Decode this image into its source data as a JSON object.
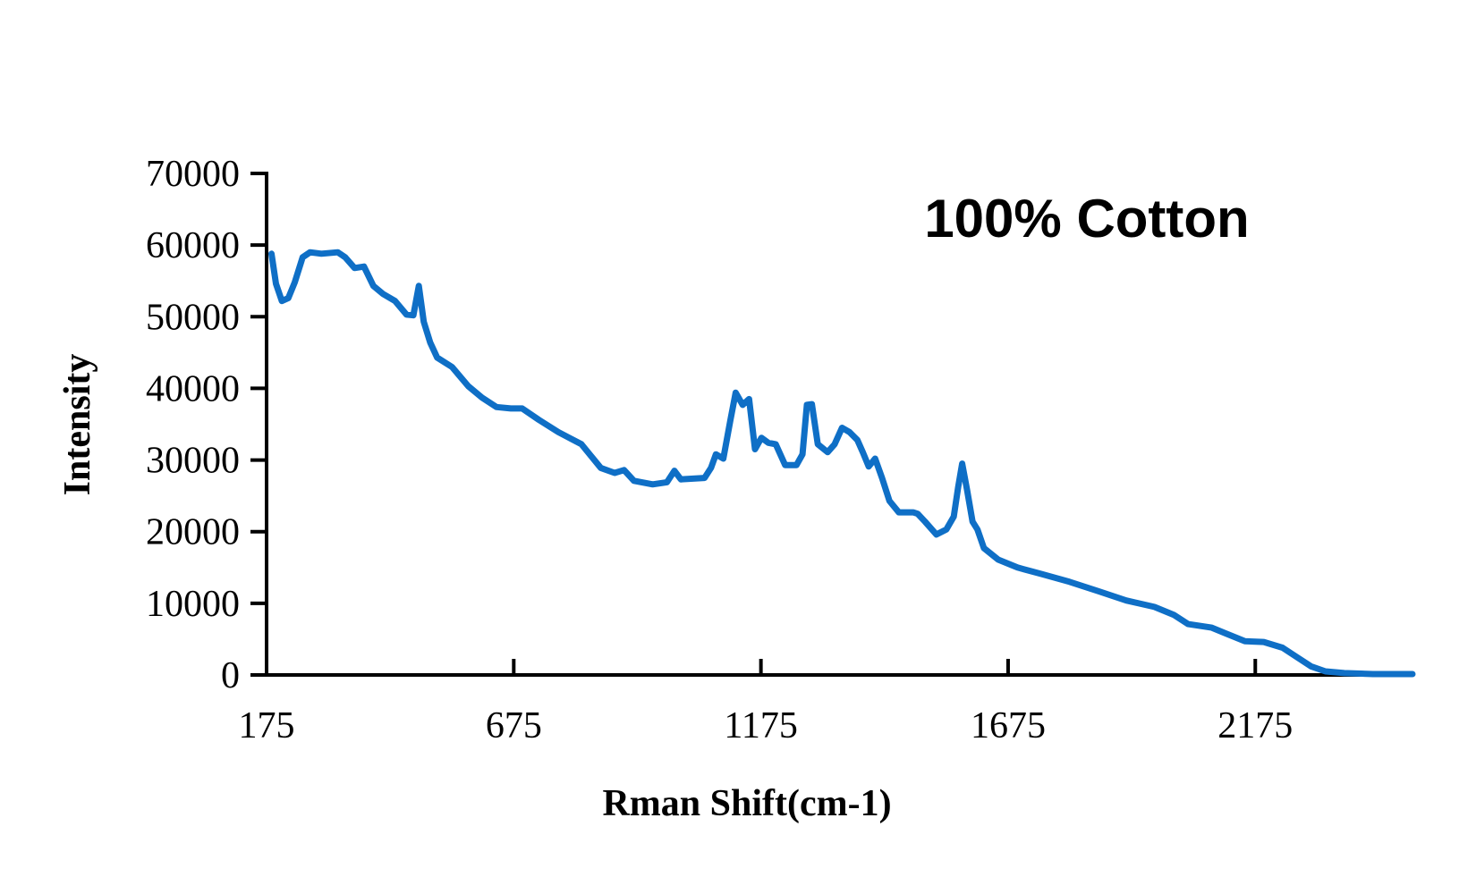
{
  "chart_data": {
    "type": "line",
    "title": "100% Cotton",
    "x_label": "Rman  Shift(cm-1)",
    "y_label": "Intensity",
    "xlim": [
      175,
      2493
    ],
    "ylim": [
      0,
      70000
    ],
    "xticks": [
      175,
      675,
      1175,
      1675,
      2175
    ],
    "yticks": [
      0,
      10000,
      20000,
      30000,
      40000,
      50000,
      60000,
      70000
    ],
    "series": [
      {
        "name": "100% Cotton",
        "color": "#0f6fc6",
        "x": [
          185,
          194,
          206,
          219,
          232,
          248,
          263,
          286,
          319,
          334,
          353,
          372,
          391,
          410,
          435,
          458,
          472,
          483,
          493,
          506,
          520,
          550,
          583,
          611,
          640,
          669,
          692,
          726,
          765,
          812,
          831,
          851,
          879,
          898,
          918,
          956,
          985,
          1000,
          1013,
          1061,
          1074,
          1084,
          1099,
          1113,
          1124,
          1138,
          1151,
          1163,
          1176,
          1190,
          1205,
          1224,
          1247,
          1259,
          1268,
          1278,
          1290,
          1310,
          1324,
          1339,
          1354,
          1370,
          1381,
          1393,
          1406,
          1420,
          1435,
          1454,
          1483,
          1492,
          1507,
          1530,
          1550,
          1565,
          1574,
          1582,
          1592,
          1603,
          1613,
          1626,
          1655,
          1694,
          1742,
          1799,
          1857,
          1914,
          1971,
          2010,
          2039,
          2087,
          2115,
          2154,
          2192,
          2230,
          2259,
          2288,
          2317,
          2355,
          2413,
          2493
        ],
        "values": [
          58800,
          54600,
          52200,
          52600,
          54800,
          58300,
          59000,
          58800,
          59000,
          58300,
          56800,
          57000,
          54300,
          53200,
          52200,
          50300,
          50200,
          54300,
          49300,
          46400,
          44300,
          43000,
          40300,
          38700,
          37400,
          37200,
          37200,
          35600,
          33900,
          32200,
          30600,
          28900,
          28200,
          28600,
          27100,
          26600,
          26900,
          28500,
          27300,
          27500,
          28900,
          30800,
          30200,
          35500,
          39400,
          37700,
          38500,
          31500,
          33100,
          32400,
          32200,
          29300,
          29300,
          30800,
          37700,
          37800,
          32200,
          31100,
          32200,
          34500,
          33900,
          32800,
          31100,
          29100,
          30200,
          27500,
          24300,
          22700,
          22700,
          22500,
          21400,
          19600,
          20300,
          22100,
          26200,
          29500,
          25800,
          21400,
          20300,
          17700,
          16100,
          15000,
          14100,
          13000,
          11700,
          10400,
          9500,
          8400,
          7100,
          6600,
          5800,
          4700,
          4600,
          3800,
          2500,
          1200,
          500,
          260,
          130,
          130
        ]
      }
    ]
  }
}
